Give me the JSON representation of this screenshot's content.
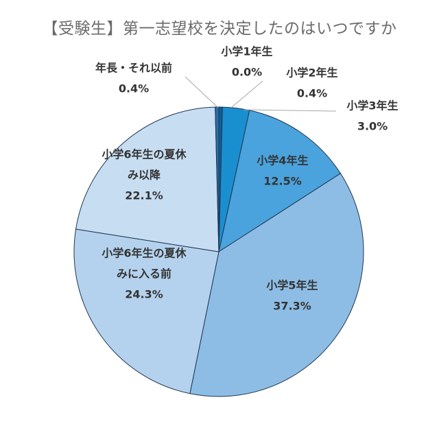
{
  "chart_data": {
    "type": "pie",
    "title": "【受験生】第一志望校を決定したのはいつですか",
    "slices": [
      {
        "lines": [
          "小学1年生"
        ],
        "value_label": "0.0%",
        "value": 0.0,
        "color": "#0a3d6b"
      },
      {
        "lines": [
          "小学2年生"
        ],
        "value_label": "0.4%",
        "value": 0.4,
        "color": "#0f5f99"
      },
      {
        "lines": [
          "小学3年生"
        ],
        "value_label": "3.0%",
        "value": 3.0,
        "color": "#1a8fcf"
      },
      {
        "lines": [
          "小学4年生"
        ],
        "value_label": "12.5%",
        "value": 12.5,
        "color": "#4aa3dc"
      },
      {
        "lines": [
          "小学5年生"
        ],
        "value_label": "37.3%",
        "value": 37.3,
        "color": "#8dbde5"
      },
      {
        "lines": [
          "小学6年生の夏休",
          "みに入る前"
        ],
        "value_label": "24.3%",
        "value": 24.3,
        "color": "#b4d2ee"
      },
      {
        "lines": [
          "小学6年生の夏休",
          "み以降"
        ],
        "value_label": "22.1%",
        "value": 22.1,
        "color": "#c7ddf2"
      },
      {
        "lines": [
          "年長・それ以前"
        ],
        "value_label": "0.4%",
        "value": 0.4,
        "color": "#2a6fa8"
      }
    ],
    "legend": "none",
    "start_angle_deg": 0,
    "direction": "clockwise"
  }
}
